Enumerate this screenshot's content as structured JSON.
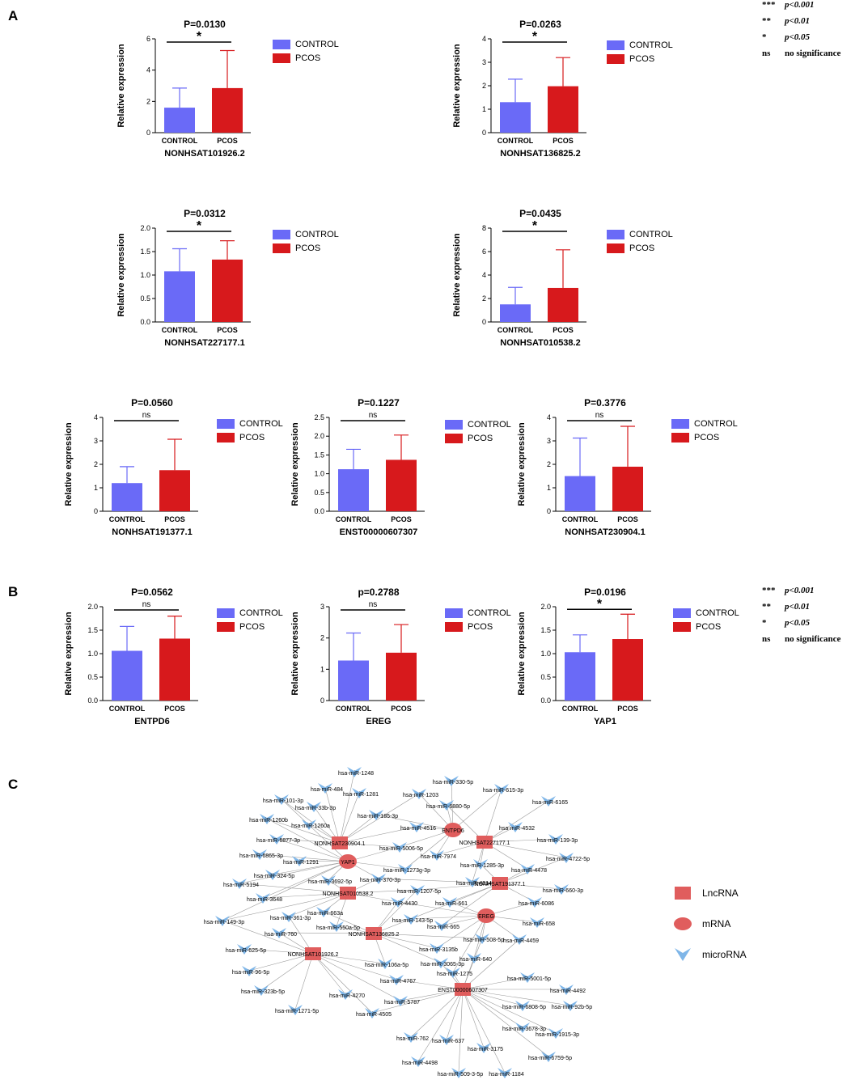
{
  "panels": {
    "A": "A",
    "B": "B",
    "C": "C"
  },
  "legend": {
    "control": "CONTROL",
    "pcos": "PCOS"
  },
  "colors": {
    "control": "#6A6AF7",
    "pcos": "#D7191C",
    "lnc": "#E05D5D",
    "mrna": "#E05D5D",
    "mirna": "#7FB6E8",
    "edge": "#9A9A9A"
  },
  "significance_key": [
    {
      "sym": "***",
      "text": "p<0.001"
    },
    {
      "sym": "**",
      "text": "p<0.01"
    },
    {
      "sym": "*",
      "text": "p<0.05"
    },
    {
      "sym": "ns",
      "text": "no significance"
    }
  ],
  "chart_data": [
    {
      "type": "bar",
      "title": "P=0.0130",
      "xlabel": "NONHSAT101926.2",
      "ylabel": "Relative expression",
      "categories": [
        "CONTROL",
        "PCOS"
      ],
      "values": [
        1.6,
        2.85
      ],
      "errors": [
        1.25,
        2.4
      ],
      "ylim": [
        0,
        6
      ],
      "yticks": [
        0,
        2,
        4,
        6
      ],
      "sig": "*"
    },
    {
      "type": "bar",
      "title": "P=0.0263",
      "xlabel": "NONHSAT136825.2",
      "ylabel": "Relative expression",
      "categories": [
        "CONTROL",
        "PCOS"
      ],
      "values": [
        1.3,
        1.98
      ],
      "errors": [
        0.98,
        1.22
      ],
      "ylim": [
        0,
        4
      ],
      "yticks": [
        0,
        1,
        2,
        3,
        4
      ],
      "sig": "*"
    },
    {
      "type": "bar",
      "title": "P=0.0312",
      "xlabel": "NONHSAT227177.1",
      "ylabel": "Relative expression",
      "categories": [
        "CONTROL",
        "PCOS"
      ],
      "values": [
        1.08,
        1.33
      ],
      "errors": [
        0.48,
        0.4
      ],
      "ylim": [
        0,
        2
      ],
      "yticks": [
        0.0,
        0.5,
        1.0,
        1.5,
        2.0
      ],
      "sig": "*"
    },
    {
      "type": "bar",
      "title": "P=0.0435",
      "xlabel": "NONHSAT010538.2",
      "ylabel": "Relative expression",
      "categories": [
        "CONTROL",
        "PCOS"
      ],
      "values": [
        1.5,
        2.9
      ],
      "errors": [
        1.45,
        3.25
      ],
      "ylim": [
        0,
        8
      ],
      "yticks": [
        0,
        2,
        4,
        6,
        8
      ],
      "sig": "*"
    },
    {
      "type": "bar",
      "title": "P=0.0560",
      "xlabel": "NONHSAT191377.1",
      "ylabel": "Relative expression",
      "categories": [
        "CONTROL",
        "PCOS"
      ],
      "values": [
        1.2,
        1.75
      ],
      "errors": [
        0.7,
        1.32
      ],
      "ylim": [
        0,
        4
      ],
      "yticks": [
        0,
        1,
        2,
        3,
        4
      ],
      "sig": "ns"
    },
    {
      "type": "bar",
      "title": "P=0.1227",
      "xlabel": "ENST00000607307",
      "ylabel": "Relative expression",
      "categories": [
        "CONTROL",
        "PCOS"
      ],
      "values": [
        1.12,
        1.37
      ],
      "errors": [
        0.53,
        0.66
      ],
      "ylim": [
        0,
        2.5
      ],
      "yticks": [
        0.0,
        0.5,
        1.0,
        1.5,
        2.0,
        2.5
      ],
      "sig": "ns"
    },
    {
      "type": "bar",
      "title": "P=0.3776",
      "xlabel": "NONHSAT230904.1",
      "ylabel": "Relative expression",
      "categories": [
        "CONTROL",
        "PCOS"
      ],
      "values": [
        1.5,
        1.9
      ],
      "errors": [
        1.62,
        1.72
      ],
      "ylim": [
        0,
        4
      ],
      "yticks": [
        0,
        1,
        2,
        3,
        4
      ],
      "sig": "ns"
    },
    {
      "type": "bar",
      "title": "P=0.0562",
      "xlabel": "ENTPD6",
      "ylabel": "Relative expression",
      "categories": [
        "CONTROL",
        "PCOS"
      ],
      "values": [
        1.06,
        1.32
      ],
      "errors": [
        0.52,
        0.48
      ],
      "ylim": [
        0,
        2
      ],
      "yticks": [
        0.0,
        0.5,
        1.0,
        1.5,
        2.0
      ],
      "sig": "ns"
    },
    {
      "type": "bar",
      "title": "p=0.2788",
      "xlabel": "EREG",
      "ylabel": "Relative expression",
      "categories": [
        "CONTROL",
        "PCOS"
      ],
      "values": [
        1.28,
        1.53
      ],
      "errors": [
        0.88,
        0.9
      ],
      "ylim": [
        0,
        3
      ],
      "yticks": [
        0,
        1,
        2,
        3
      ],
      "sig": "ns"
    },
    {
      "type": "bar",
      "title": "P=0.0196",
      "xlabel": "YAP1",
      "ylabel": "Relative expression",
      "categories": [
        "CONTROL",
        "PCOS"
      ],
      "values": [
        1.03,
        1.31
      ],
      "errors": [
        0.37,
        0.53
      ],
      "ylim": [
        0,
        2
      ],
      "yticks": [
        0.0,
        0.5,
        1.0,
        1.5,
        2.0
      ],
      "sig": "*"
    }
  ],
  "network": {
    "legend": {
      "lnc": "LncRNA",
      "mrna": "mRNA",
      "mirna": "microRNA"
    },
    "lncrna": [
      "NONHSAT230904.1",
      "NONHSAT227177.1",
      "NONHSAT010538.2",
      "NONHSAT191377.1",
      "NONHSAT136825.2",
      "NONHSAT101926.2",
      "ENST00000607307"
    ],
    "mrna": [
      "ENTPD6",
      "YAP1",
      "EREG"
    ],
    "mirna": [
      "hsa-miR-1248",
      "hsa-miR-484",
      "hsa-miR-1281",
      "hsa-miR-101-3p",
      "hsa-miR-33b-3p",
      "hsa-miR-1203",
      "hsa-miR-330-5p",
      "hsa-miR-615-3p",
      "hsa-miR-6165",
      "hsa-miR-6880-5p",
      "hsa-miR-185-3p",
      "hsa-miR-1260b",
      "hsa-miR-1260a",
      "hsa-miR-4516",
      "hsa-miR-4532",
      "hsa-miR-6877-3p",
      "hsa-miR-139-3p",
      "hsa-miR-5006-5p",
      "hsa-miR-6865-3p",
      "hsa-miR-7974",
      "hsa-miR-4722-5p",
      "hsa-miR-1291",
      "hsa-miR-1285-3p",
      "hsa-miR-4478",
      "hsa-miR-1273g-3p",
      "hsa-miR-324-5p",
      "hsa-miR-370-3p",
      "hsa-miR-5194",
      "hsa-miR-4314",
      "hsa-miR-3692-5p",
      "hsa-miR-1207-5p",
      "hsa-miR-660-3p",
      "hsa-miR-3648",
      "hsa-miR-661",
      "hsa-miR-6086",
      "hsa-miR-4430",
      "hsa-miR-663a",
      "hsa-miR-361-3p",
      "hsa-miR-149-3p",
      "hsa-miR-143-5p",
      "hsa-miR-665",
      "hsa-miR-658",
      "hsa-miR-550a-5p",
      "hsa-miR-760",
      "hsa-miR-508-5p",
      "hsa-miR-4459",
      "hsa-miR-3135b",
      "hsa-miR-625-5p",
      "hsa-miR-640",
      "hsa-miR-106a-5p",
      "hsa-miR-3065-3p",
      "hsa-miR-1275",
      "hsa-miR-96-5p",
      "hsa-miR-4767",
      "hsa-miR-5001-5p",
      "hsa-miR-4492",
      "hsa-miR-323b-5p",
      "hsa-miR-4270",
      "hsa-miR-5787",
      "hsa-miR-6808-5p",
      "hsa-miR-92b-5p",
      "hsa-miR-1271-5p",
      "hsa-miR-4505",
      "hsa-miR-3678-3p",
      "hsa-miR-1915-3p",
      "hsa-miR-762",
      "hsa-miR-637",
      "hsa-miR-3175",
      "hsa-miR-6759-5p",
      "hsa-miR-4498",
      "hsa-miR-509-3-5p",
      "hsa-miR-1184"
    ],
    "edges": [
      [
        "NONHSAT230904.1",
        "hsa-miR-1248"
      ],
      [
        "NONHSAT230904.1",
        "hsa-miR-484"
      ],
      [
        "NONHSAT230904.1",
        "hsa-miR-1281"
      ],
      [
        "NONHSAT230904.1",
        "hsa-miR-101-3p"
      ],
      [
        "NONHSAT230904.1",
        "hsa-miR-33b-3p"
      ],
      [
        "NONHSAT230904.1",
        "hsa-miR-1260b"
      ],
      [
        "NONHSAT230904.1",
        "hsa-miR-1260a"
      ],
      [
        "NONHSAT230904.1",
        "hsa-miR-185-3p"
      ],
      [
        "NONHSAT230904.1",
        "hsa-miR-6877-3p"
      ],
      [
        "NONHSAT230904.1",
        "hsa-miR-1203"
      ],
      [
        "NONHSAT230904.1",
        "hsa-miR-5006-5p"
      ],
      [
        "NONHSAT230904.1",
        "hsa-miR-4516"
      ],
      [
        "ENTPD6",
        "hsa-miR-330-5p"
      ],
      [
        "ENTPD6",
        "hsa-miR-615-3p"
      ],
      [
        "ENTPD6",
        "hsa-miR-6880-5p"
      ],
      [
        "ENTPD6",
        "hsa-miR-4516"
      ],
      [
        "ENTPD6",
        "hsa-miR-1203"
      ],
      [
        "ENTPD6",
        "hsa-miR-7974"
      ],
      [
        "ENTPD6",
        "hsa-miR-5006-5p"
      ],
      [
        "ENTPD6",
        "hsa-miR-1273g-3p"
      ],
      [
        "ENTPD6",
        "hsa-miR-185-3p"
      ],
      [
        "NONHSAT227177.1",
        "hsa-miR-4532"
      ],
      [
        "NONHSAT227177.1",
        "hsa-miR-6165"
      ],
      [
        "NONHSAT227177.1",
        "hsa-miR-139-3p"
      ],
      [
        "NONHSAT227177.1",
        "hsa-miR-4722-5p"
      ],
      [
        "NONHSAT227177.1",
        "hsa-miR-4478"
      ],
      [
        "NONHSAT227177.1",
        "hsa-miR-1285-3p"
      ],
      [
        "NONHSAT227177.1",
        "hsa-miR-7974"
      ],
      [
        "NONHSAT227177.1",
        "hsa-miR-615-3p"
      ],
      [
        "NONHSAT227177.1",
        "hsa-miR-6880-5p"
      ],
      [
        "NONHSAT227177.1",
        "hsa-miR-4314"
      ],
      [
        "YAP1",
        "hsa-miR-6865-3p"
      ],
      [
        "YAP1",
        "hsa-miR-1291"
      ],
      [
        "YAP1",
        "hsa-miR-324-5p"
      ],
      [
        "YAP1",
        "hsa-miR-5194"
      ],
      [
        "YAP1",
        "hsa-miR-3648"
      ],
      [
        "YAP1",
        "hsa-miR-6877-3p"
      ],
      [
        "YAP1",
        "hsa-miR-1260b"
      ],
      [
        "YAP1",
        "hsa-miR-370-3p"
      ],
      [
        "YAP1",
        "hsa-miR-3692-5p"
      ],
      [
        "YAP1",
        "hsa-miR-5006-5p"
      ],
      [
        "YAP1",
        "hsa-miR-1273g-3p"
      ],
      [
        "YAP1",
        "hsa-miR-101-3p"
      ],
      [
        "YAP1",
        "hsa-miR-149-3p"
      ],
      [
        "NONHSAT010538.2",
        "hsa-miR-3692-5p"
      ],
      [
        "NONHSAT010538.2",
        "hsa-miR-361-3p"
      ],
      [
        "NONHSAT010538.2",
        "hsa-miR-663a"
      ],
      [
        "NONHSAT010538.2",
        "hsa-miR-3648"
      ],
      [
        "NONHSAT010538.2",
        "hsa-miR-149-3p"
      ],
      [
        "NONHSAT010538.2",
        "hsa-miR-4430"
      ],
      [
        "NONHSAT010538.2",
        "hsa-miR-1207-5p"
      ],
      [
        "NONHSAT010538.2",
        "hsa-miR-370-3p"
      ],
      [
        "NONHSAT010538.2",
        "hsa-miR-550a-5p"
      ],
      [
        "NONHSAT010538.2",
        "hsa-miR-5194"
      ],
      [
        "NONHSAT191377.1",
        "hsa-miR-660-3p"
      ],
      [
        "NONHSAT191377.1",
        "hsa-miR-6086"
      ],
      [
        "NONHSAT191377.1",
        "hsa-miR-4478"
      ],
      [
        "NONHSAT191377.1",
        "hsa-miR-4722-5p"
      ],
      [
        "NONHSAT191377.1",
        "hsa-miR-1285-3p"
      ],
      [
        "NONHSAT191377.1",
        "hsa-miR-4314"
      ],
      [
        "NONHSAT191377.1",
        "hsa-miR-661"
      ],
      [
        "NONHSAT191377.1",
        "hsa-miR-665"
      ],
      [
        "NONHSAT191377.1",
        "hsa-miR-1207-5p"
      ],
      [
        "NONHSAT191377.1",
        "hsa-miR-370-3p"
      ],
      [
        "NONHSAT191377.1",
        "hsa-miR-143-5p"
      ],
      [
        "EREG",
        "hsa-miR-658"
      ],
      [
        "EREG",
        "hsa-miR-4459"
      ],
      [
        "EREG",
        "hsa-miR-508-5p"
      ],
      [
        "EREG",
        "hsa-miR-640"
      ],
      [
        "EREG",
        "hsa-miR-6086"
      ],
      [
        "EREG",
        "hsa-miR-661"
      ],
      [
        "EREG",
        "hsa-miR-665"
      ],
      [
        "EREG",
        "hsa-miR-3135b"
      ],
      [
        "EREG",
        "hsa-miR-4430"
      ],
      [
        "EREG",
        "hsa-miR-143-5p"
      ],
      [
        "EREG",
        "hsa-miR-1275"
      ],
      [
        "NONHSAT136825.2",
        "hsa-miR-143-5p"
      ],
      [
        "NONHSAT136825.2",
        "hsa-miR-4430"
      ],
      [
        "NONHSAT136825.2",
        "hsa-miR-550a-5p"
      ],
      [
        "NONHSAT136825.2",
        "hsa-miR-3135b"
      ],
      [
        "NONHSAT136825.2",
        "hsa-miR-106a-5p"
      ],
      [
        "NONHSAT136825.2",
        "hsa-miR-3065-3p"
      ],
      [
        "NONHSAT136825.2",
        "hsa-miR-760"
      ],
      [
        "NONHSAT136825.2",
        "hsa-miR-1207-5p"
      ],
      [
        "NONHSAT136825.2",
        "hsa-miR-508-5p"
      ],
      [
        "NONHSAT136825.2",
        "hsa-miR-663a"
      ],
      [
        "NONHSAT101926.2",
        "hsa-miR-625-5p"
      ],
      [
        "NONHSAT101926.2",
        "hsa-miR-96-5p"
      ],
      [
        "NONHSAT101926.2",
        "hsa-miR-323b-5p"
      ],
      [
        "NONHSAT101926.2",
        "hsa-miR-1271-5p"
      ],
      [
        "NONHSAT101926.2",
        "hsa-miR-4270"
      ],
      [
        "NONHSAT101926.2",
        "hsa-miR-760"
      ],
      [
        "NONHSAT101926.2",
        "hsa-miR-149-3p"
      ],
      [
        "NONHSAT101926.2",
        "hsa-miR-106a-5p"
      ],
      [
        "NONHSAT101926.2",
        "hsa-miR-4767"
      ],
      [
        "NONHSAT101926.2",
        "hsa-miR-361-3p"
      ],
      [
        "NONHSAT101926.2",
        "hsa-miR-5787"
      ],
      [
        "NONHSAT101926.2",
        "hsa-miR-4505"
      ],
      [
        "ENST00000607307",
        "hsa-miR-5001-5p"
      ],
      [
        "ENST00000607307",
        "hsa-miR-4492"
      ],
      [
        "ENST00000607307",
        "hsa-miR-6808-5p"
      ],
      [
        "ENST00000607307",
        "hsa-miR-92b-5p"
      ],
      [
        "ENST00000607307",
        "hsa-miR-3678-3p"
      ],
      [
        "ENST00000607307",
        "hsa-miR-1915-3p"
      ],
      [
        "ENST00000607307",
        "hsa-miR-6759-5p"
      ],
      [
        "ENST00000607307",
        "hsa-miR-1184"
      ],
      [
        "ENST00000607307",
        "hsa-miR-509-3-5p"
      ],
      [
        "ENST00000607307",
        "hsa-miR-3175"
      ],
      [
        "ENST00000607307",
        "hsa-miR-4498"
      ],
      [
        "ENST00000607307",
        "hsa-miR-637"
      ],
      [
        "ENST00000607307",
        "hsa-miR-762"
      ],
      [
        "ENST00000607307",
        "hsa-miR-4505"
      ],
      [
        "ENST00000607307",
        "hsa-miR-5787"
      ],
      [
        "ENST00000607307",
        "hsa-miR-4767"
      ],
      [
        "ENST00000607307",
        "hsa-miR-1275"
      ],
      [
        "ENST00000607307",
        "hsa-miR-640"
      ],
      [
        "ENST00000607307",
        "hsa-miR-3065-3p"
      ],
      [
        "ENST00000607307",
        "hsa-miR-4459"
      ],
      [
        "ENST00000607307",
        "hsa-miR-508-5p"
      ]
    ]
  }
}
